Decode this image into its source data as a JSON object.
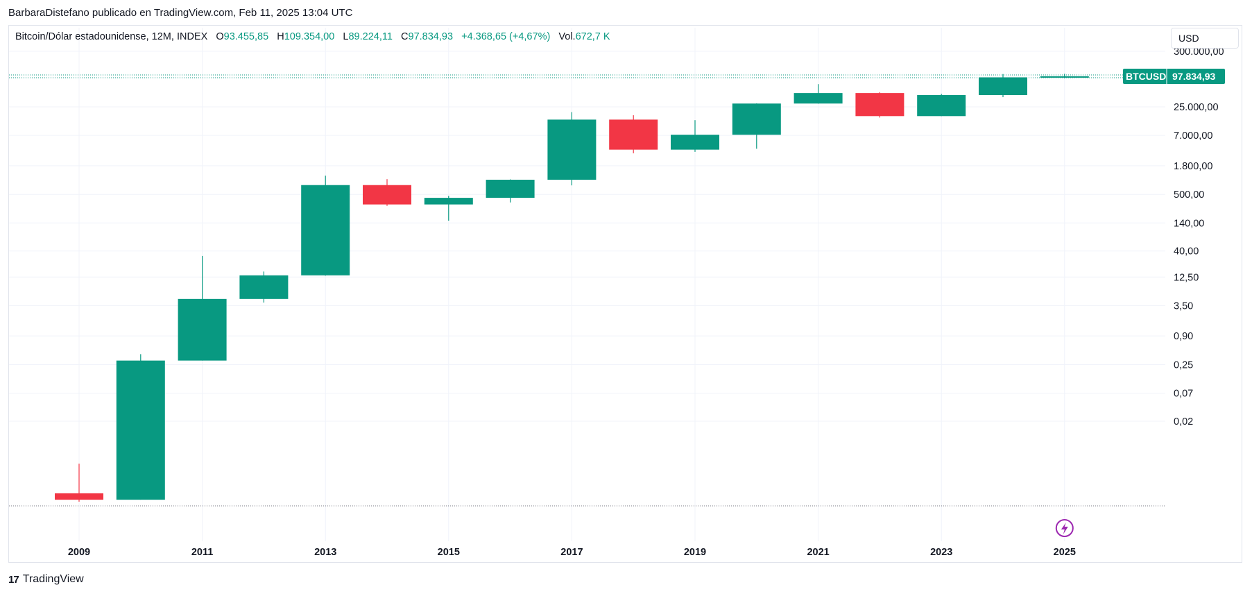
{
  "header": {
    "published_by": "BarbaraDistefano publicado en TradingView.com, Feb 11, 2025 13:04 UTC"
  },
  "legend": {
    "symbol": "Bitcoin/Dólar estadounidense, 12M, INDEX",
    "o_label": "O",
    "o_value": "93.455,85",
    "h_label": "H",
    "h_value": "109.354,00",
    "l_label": "L",
    "l_value": "89.224,11",
    "c_label": "C",
    "c_value": "97.834,93",
    "change": "+4.368,65 (+4,67%)",
    "vol_label": "Vol.",
    "vol_value": "672,7 K"
  },
  "currency": "USD",
  "price_tag": {
    "symbol": "BTCUSD",
    "price": "97.834,93"
  },
  "footer": {
    "brand": "TradingView",
    "logo_glyph": "17"
  },
  "colors": {
    "up": "#089981",
    "down": "#f23645",
    "grid": "#f0f3fa",
    "axis_text": "#131722"
  },
  "chart_data": {
    "type": "candlestick",
    "title": "",
    "xlabel": "",
    "ylabel": "",
    "y_scale": "log",
    "grid": true,
    "y_ticks": [
      {
        "value": 300000,
        "label": "300.000,00"
      },
      {
        "value": 25000,
        "label": "25.000,00"
      },
      {
        "value": 7000,
        "label": "7.000,00"
      },
      {
        "value": 1800,
        "label": "1.800,00"
      },
      {
        "value": 500,
        "label": "500,00"
      },
      {
        "value": 140,
        "label": "140,00"
      },
      {
        "value": 40,
        "label": "40,00"
      },
      {
        "value": 12.5,
        "label": "12,50"
      },
      {
        "value": 3.5,
        "label": "3,50"
      },
      {
        "value": 0.9,
        "label": "0,90"
      },
      {
        "value": 0.25,
        "label": "0,25"
      },
      {
        "value": 0.07,
        "label": "0,07"
      },
      {
        "value": 0.02,
        "label": "0,02"
      }
    ],
    "x_ticks": [
      "2009",
      "2011",
      "2013",
      "2015",
      "2017",
      "2019",
      "2021",
      "2023",
      "2025"
    ],
    "candles": [
      {
        "year": 2009,
        "open": 0.0008,
        "high": 0.003,
        "low": 0.00055,
        "close": 0.0006
      },
      {
        "year": 2010,
        "open": 0.0006,
        "high": 0.4,
        "low": 0.0006,
        "close": 0.3
      },
      {
        "year": 2011,
        "open": 0.3,
        "high": 32,
        "low": 0.3,
        "close": 4.7
      },
      {
        "year": 2012,
        "open": 4.7,
        "high": 16,
        "low": 4.0,
        "close": 13.5
      },
      {
        "year": 2013,
        "open": 13.5,
        "high": 1160,
        "low": 13.3,
        "close": 760
      },
      {
        "year": 2014,
        "open": 760,
        "high": 990,
        "low": 300,
        "close": 320
      },
      {
        "year": 2015,
        "open": 320,
        "high": 470,
        "low": 155,
        "close": 430
      },
      {
        "year": 2016,
        "open": 430,
        "high": 980,
        "low": 350,
        "close": 965
      },
      {
        "year": 2017,
        "open": 965,
        "high": 19800,
        "low": 750,
        "close": 14150
      },
      {
        "year": 2018,
        "open": 14150,
        "high": 17200,
        "low": 3150,
        "close": 3700
      },
      {
        "year": 2019,
        "open": 3700,
        "high": 13800,
        "low": 3350,
        "close": 7200
      },
      {
        "year": 2020,
        "open": 7200,
        "high": 29300,
        "low": 3850,
        "close": 29000
      },
      {
        "year": 2021,
        "open": 29000,
        "high": 69000,
        "low": 28800,
        "close": 46300
      },
      {
        "year": 2022,
        "open": 46300,
        "high": 48200,
        "low": 15500,
        "close": 16550
      },
      {
        "year": 2023,
        "open": 16550,
        "high": 44700,
        "low": 16500,
        "close": 42300
      },
      {
        "year": 2024,
        "open": 42300,
        "high": 108350,
        "low": 38500,
        "close": 93455
      },
      {
        "year": 2025,
        "open": 93455.85,
        "high": 109354.0,
        "low": 89224.11,
        "close": 97834.93
      }
    ],
    "last_price": 97834.93,
    "low_line": 0.00055
  }
}
